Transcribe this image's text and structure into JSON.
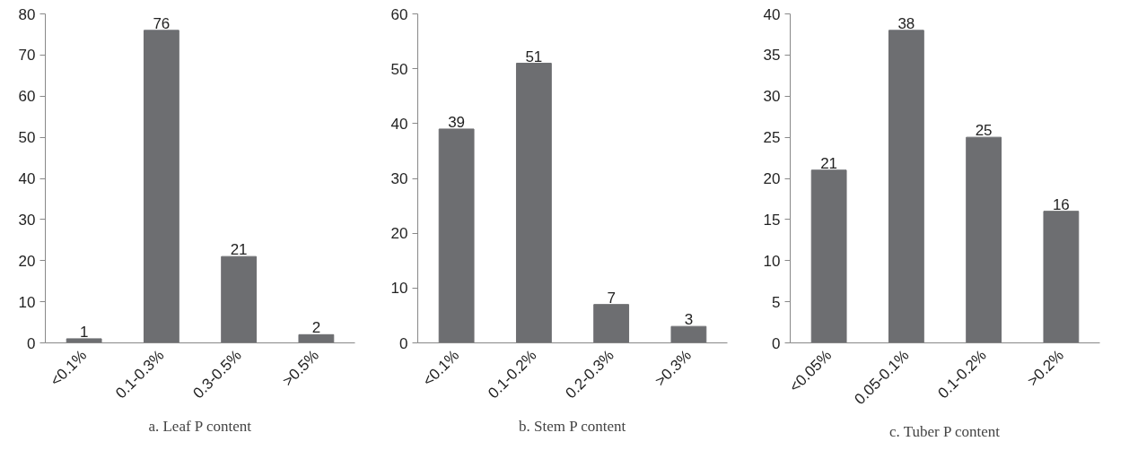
{
  "chart_data": [
    {
      "type": "bar",
      "title": "a. Leaf P content",
      "categories": [
        "<0.1%",
        "0.1-0.3%",
        "0.3-0.5%",
        ">0.5%"
      ],
      "values": [
        1,
        76,
        21,
        2
      ],
      "color": "#6d6e71",
      "ylim": [
        0,
        80
      ],
      "yticks": [
        0,
        10,
        20,
        30,
        40,
        50,
        60,
        70,
        80
      ],
      "data_labels": true,
      "grid": false
    },
    {
      "type": "bar",
      "title": "b. Stem P content",
      "categories": [
        "<0.1%",
        "0.1-0.2%",
        "0.2-0.3%",
        ">0.3%"
      ],
      "values": [
        39,
        51,
        7,
        3
      ],
      "color": "#6d6e71",
      "ylim": [
        0,
        60
      ],
      "yticks": [
        0,
        10,
        20,
        30,
        40,
        50,
        60
      ],
      "data_labels": true,
      "grid": false
    },
    {
      "type": "bar",
      "title": "c. Tuber P content",
      "categories": [
        "<0.05%",
        "0.05-0.1%",
        "0.1-0.2%",
        ">0.2%"
      ],
      "values": [
        21,
        38,
        25,
        16
      ],
      "color": "#6d6e71",
      "ylim": [
        0,
        40
      ],
      "yticks": [
        0,
        5,
        10,
        15,
        20,
        25,
        30,
        35,
        40
      ],
      "data_labels": true,
      "grid": false
    }
  ]
}
